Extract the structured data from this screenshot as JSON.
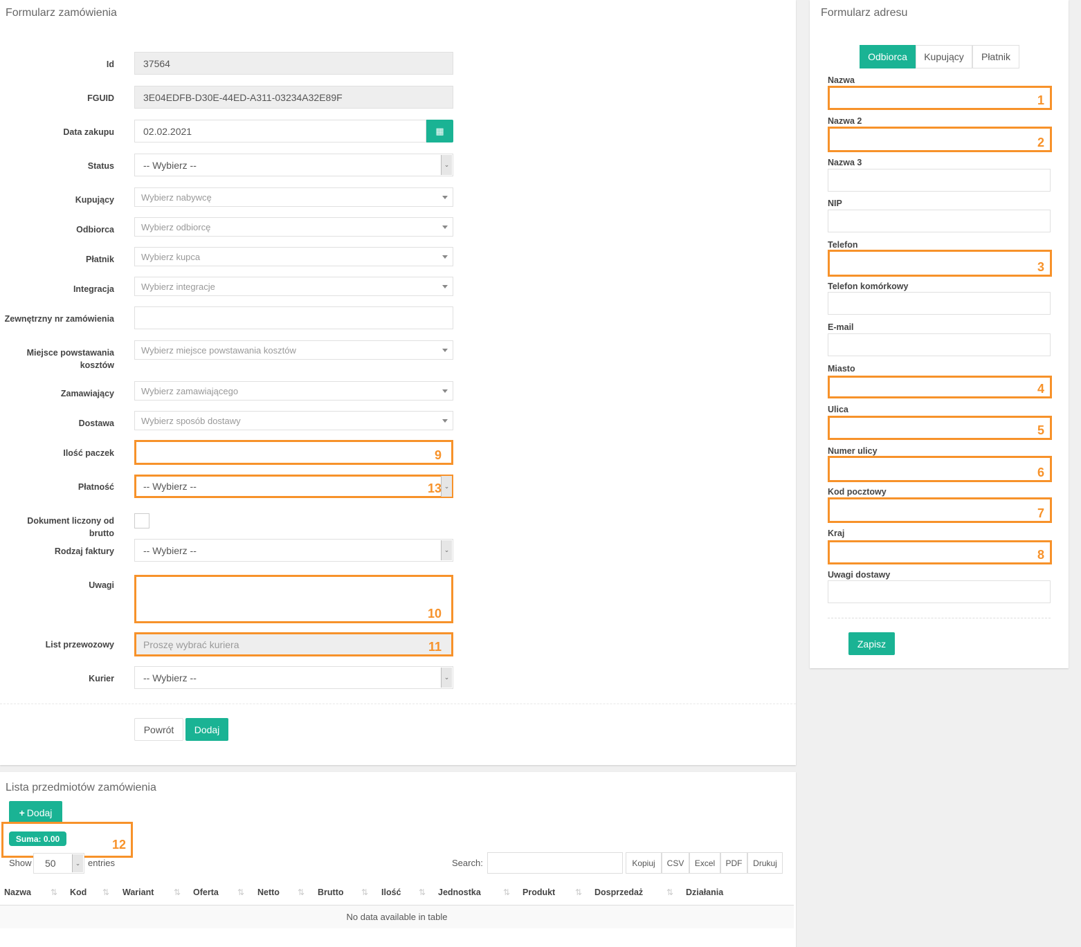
{
  "order_form": {
    "title": "Formularz zamówienia",
    "fields": [
      {
        "label": "Id",
        "value": "37564",
        "type": "readonly"
      },
      {
        "label": "FGUID",
        "value": "3E04EDFB-D30E-44ED-A311-03234A32E89F",
        "type": "readonly"
      },
      {
        "label": "Data zakupu",
        "value": "02.02.2021",
        "type": "date",
        "icon": "calendar-icon"
      },
      {
        "label": "Status",
        "value": "-- Wybierz --",
        "type": "select"
      },
      {
        "label": "Kupujący",
        "placeholder": "Wybierz nabywcę",
        "type": "select2"
      },
      {
        "label": "Odbiorca",
        "placeholder": "Wybierz odbiorcę",
        "type": "select2"
      },
      {
        "label": "Płatnik",
        "placeholder": "Wybierz kupca",
        "type": "select2"
      },
      {
        "label": "Integracja",
        "placeholder": "Wybierz integracje",
        "type": "select2"
      },
      {
        "label": "Zewnętrzny nr zamówienia",
        "value": "",
        "type": "text"
      },
      {
        "label": "Miejsce powstawania kosztów",
        "placeholder": "Wybierz miejsce powstawania kosztów",
        "type": "select2"
      },
      {
        "label": "Zamawiający",
        "placeholder": "Wybierz zamawiającego",
        "type": "select2"
      },
      {
        "label": "Dostawa",
        "placeholder": "Wybierz sposób dostawy",
        "type": "select2"
      },
      {
        "label": "Ilość paczek",
        "value": "",
        "type": "text",
        "annotation": "9"
      },
      {
        "label": "Płatność",
        "value": "-- Wybierz --",
        "type": "select",
        "annotation": "13"
      },
      {
        "label": "Dokument liczony od brutto",
        "checked": false,
        "type": "checkbox"
      },
      {
        "label": "Rodzaj faktury",
        "value": "-- Wybierz --",
        "type": "select"
      },
      {
        "label": "Uwagi",
        "value": "",
        "type": "textarea",
        "annotation": "10"
      },
      {
        "label": "List przewozowy",
        "placeholder": "Proszę wybrać kuriera",
        "type": "readonly",
        "annotation": "11"
      },
      {
        "label": "Kurier",
        "value": "-- Wybierz --",
        "type": "select"
      }
    ],
    "back_label": "Powrót",
    "add_label": "Dodaj"
  },
  "address_form": {
    "title": "Formularz adresu",
    "tabs": [
      {
        "label": "Odbiorca",
        "active": true
      },
      {
        "label": "Kupujący"
      },
      {
        "label": "Płatnik"
      }
    ],
    "fields": [
      {
        "label": "Nazwa",
        "annotation": "1"
      },
      {
        "label": "Nazwa 2",
        "annotation": "2"
      },
      {
        "label": "Nazwa 3"
      },
      {
        "label": "NIP"
      },
      {
        "label": "Telefon",
        "annotation": "3"
      },
      {
        "label": "Telefon komórkowy"
      },
      {
        "label": "E-mail"
      },
      {
        "label": "Miasto",
        "annotation": "4"
      },
      {
        "label": "Ulica",
        "annotation": "5"
      },
      {
        "label": "Numer ulicy",
        "annotation": "6"
      },
      {
        "label": "Kod pocztowy",
        "annotation": "7"
      },
      {
        "label": "Kraj",
        "annotation": "8"
      },
      {
        "label": "Uwagi dostawy"
      }
    ],
    "save_label": "Zapisz"
  },
  "items": {
    "title": "Lista przedmiotów zamówienia",
    "add_label": "Dodaj",
    "sum_badge": "Suma: 0.00",
    "sum_annotation": "12",
    "show_label": "Show",
    "entries_value": "50",
    "entries_label": "entries",
    "search_label": "Search:",
    "search_value": "",
    "export_buttons": [
      "Kopiuj",
      "CSV",
      "Excel",
      "PDF",
      "Drukuj"
    ],
    "columns": [
      "Nazwa",
      "Kod",
      "Wariant",
      "Oferta",
      "Netto",
      "Brutto",
      "Ilość",
      "Jednostka",
      "Produkt",
      "Dosprzedaż",
      "Działania"
    ],
    "empty_text": "No data available in table"
  },
  "colors": {
    "accent": "#1ab394",
    "annotation": "#f7922a"
  }
}
